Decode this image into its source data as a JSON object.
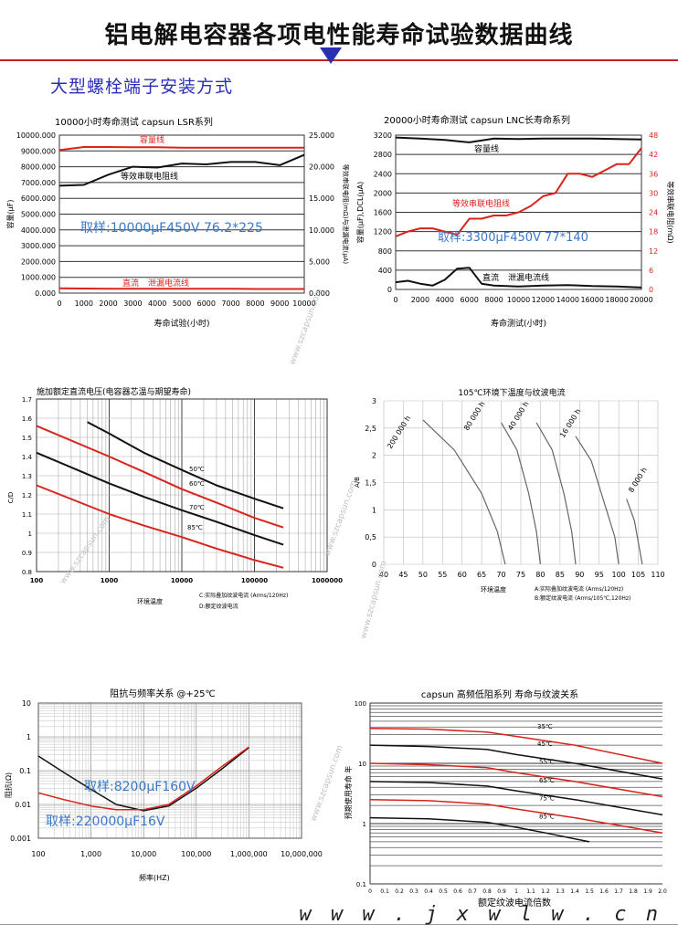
{
  "page": {
    "title": "铝电解电容器各项电性能寿命试验数据曲线",
    "section_label": "大型螺栓端子安装方式",
    "watermark_site": "w w w . j x w l w . c n",
    "side_watermark": "www.szcapsun.com",
    "footer_caption": "额定纹波电流倍数"
  },
  "colors": {
    "red": "#d9231c",
    "black": "#111111",
    "blue": "#3a78c8",
    "grid": "#777777",
    "gray_curve": "#666666"
  },
  "chart_data": [
    {
      "id": "lsr",
      "type": "line",
      "title": "10000小时寿命测试 capsun LSR系列",
      "xlabel": "寿命试验(小时)",
      "ylabel": "容量(μF)",
      "y2label": "等效串联电阻(mΩ)与泄漏电流(μA)",
      "xlim": [
        0,
        10000
      ],
      "ylim": [
        0,
        10000
      ],
      "y2lim": [
        0,
        25
      ],
      "x_ticks": [
        "0",
        "1000",
        "2000",
        "3000",
        "4000",
        "5000",
        "6000",
        "7000",
        "8000",
        "9000",
        "10000"
      ],
      "y_ticks": [
        "0.000",
        "1000.000",
        "2000.000",
        "3000.000",
        "4000.000",
        "5000.000",
        "6000.000",
        "7000.000",
        "8000.000",
        "9000.000",
        "10000.000"
      ],
      "y2_ticks": [
        "0.000",
        "5.000",
        "10.000",
        "15.000",
        "20.000",
        "25.000"
      ],
      "annotations": {
        "capacity": "容量线",
        "esr": "等效串联电阻线",
        "leakage_prefix": "直流",
        "leakage": "泄漏电流线",
        "sample": "取样:10000μF450V 76.2*225"
      },
      "series": [
        {
          "name": "容量线",
          "axis": "left",
          "x": [
            0,
            1000,
            2000,
            3000,
            4000,
            5000,
            6000,
            7000,
            8000,
            9000,
            10000
          ],
          "values": [
            9050,
            9250,
            9250,
            9230,
            9230,
            9200,
            9200,
            9210,
            9210,
            9210,
            9200
          ]
        },
        {
          "name": "等效串联电阻线",
          "axis": "left",
          "x": [
            0,
            1000,
            2000,
            3000,
            4000,
            5000,
            6000,
            7000,
            8000,
            9000,
            10000
          ],
          "values": [
            6800,
            6850,
            7500,
            8000,
            7950,
            8200,
            8150,
            8300,
            8300,
            8100,
            8750
          ]
        },
        {
          "name": "泄漏电流线",
          "axis": "left",
          "x": [
            0,
            1000,
            2000,
            3000,
            4000,
            5000,
            6000,
            7000,
            8000,
            9000,
            10000
          ],
          "values": [
            300,
            290,
            280,
            280,
            280,
            280,
            270,
            270,
            260,
            260,
            260
          ]
        }
      ]
    },
    {
      "id": "lnc",
      "type": "line",
      "title": "20000小时寿命测试 capsun LNC长寿命系列",
      "xlabel": "寿命测试(小时)",
      "ylabel": "容量(μF),DCL(μA)",
      "y2label": "等效串联电阻(mΩ)",
      "xlim": [
        0,
        20000
      ],
      "ylim": [
        0,
        3200
      ],
      "y2lim": [
        0,
        48
      ],
      "x_ticks": [
        "0",
        "2000",
        "4000",
        "6000",
        "8000",
        "10000",
        "12000",
        "14000",
        "16000",
        "18000",
        "20000"
      ],
      "y_ticks": [
        "0",
        "400",
        "800",
        "1200",
        "1600",
        "2000",
        "2400",
        "2800",
        "3200"
      ],
      "y2_ticks": [
        "0",
        "6",
        "12",
        "18",
        "24",
        "30",
        "36",
        "42",
        "48"
      ],
      "annotations": {
        "capacity": "容量线",
        "esr": "等效串联电阻线",
        "leakage_prefix": "直流",
        "leakage": "泄漏电流线",
        "sample": "取样:3300μF450V 77*140"
      },
      "series": [
        {
          "name": "容量线",
          "axis": "left",
          "x": [
            0,
            2000,
            4000,
            6000,
            8000,
            10000,
            12000,
            14000,
            16000,
            18000,
            20000
          ],
          "values": [
            3150,
            3130,
            3100,
            3050,
            3130,
            3120,
            3130,
            3130,
            3130,
            3120,
            3110
          ]
        },
        {
          "name": "等效串联电阻线",
          "axis": "right",
          "x": [
            0,
            1000,
            2000,
            3000,
            4000,
            5000,
            6000,
            7000,
            8000,
            9000,
            10000,
            11000,
            12000,
            13000,
            14000,
            15000,
            16000,
            17000,
            18000,
            19000,
            20000
          ],
          "values": [
            16.5,
            18,
            19,
            19,
            18,
            17,
            22,
            22,
            23,
            23,
            24,
            26,
            29,
            30,
            36,
            36,
            35,
            37,
            39,
            39,
            44
          ]
        },
        {
          "name": "泄漏电流线",
          "axis": "left",
          "x": [
            0,
            1000,
            2000,
            3000,
            4000,
            5000,
            6000,
            7000,
            8000,
            10000,
            12000,
            14000,
            16000,
            18000,
            20000
          ],
          "values": [
            150,
            180,
            120,
            80,
            200,
            430,
            450,
            120,
            80,
            60,
            80,
            90,
            70,
            60,
            40
          ]
        }
      ]
    },
    {
      "id": "voltage_factor",
      "type": "line",
      "title": "施加额定直流电压(电容器芯温与期望寿命)",
      "xlabel": "环境温度",
      "ylabel": "C/D",
      "x_scale": "log",
      "xlim": [
        100,
        1000000
      ],
      "ylim": [
        0.8,
        1.7
      ],
      "x_ticks": [
        "100",
        "1000",
        "10000",
        "100000",
        "1000000"
      ],
      "y_ticks": [
        "0.8",
        "0.9",
        "1",
        "1.1",
        "1.2",
        "1.3",
        "1.4",
        "1.5",
        "1.6",
        "1.7"
      ],
      "notes": [
        "C:实际叠加纹波电流 (Arms/120Hz)",
        "D:额定纹波电流"
      ],
      "series": [
        {
          "name": "50℃",
          "color": "black",
          "x": [
            500,
            1000,
            3000,
            10000,
            30000,
            100000,
            250000
          ],
          "values": [
            1.58,
            1.52,
            1.42,
            1.33,
            1.25,
            1.18,
            1.13
          ]
        },
        {
          "name": "60℃",
          "color": "red",
          "x": [
            100,
            1000,
            3000,
            10000,
            30000,
            100000,
            250000
          ],
          "values": [
            1.56,
            1.4,
            1.32,
            1.23,
            1.16,
            1.08,
            1.03
          ]
        },
        {
          "name": "70℃",
          "color": "black",
          "x": [
            100,
            1000,
            3000,
            10000,
            30000,
            100000,
            250000
          ],
          "values": [
            1.42,
            1.26,
            1.19,
            1.12,
            1.06,
            0.99,
            0.94
          ]
        },
        {
          "name": "85℃",
          "color": "red",
          "x": [
            100,
            1000,
            3000,
            10000,
            30000,
            100000,
            250000
          ],
          "values": [
            1.25,
            1.1,
            1.04,
            0.98,
            0.92,
            0.86,
            0.82
          ]
        }
      ]
    },
    {
      "id": "ripple_105",
      "type": "line",
      "title": "105℃环境下温度与纹波电流",
      "xlabel": "环境温度",
      "ylabel": "A/B",
      "xlim": [
        40,
        110
      ],
      "ylim": [
        0,
        3
      ],
      "x_ticks": [
        "40",
        "45",
        "50",
        "55",
        "60",
        "65",
        "70",
        "75",
        "80",
        "85",
        "90",
        "95",
        "100",
        "105",
        "110"
      ],
      "y_ticks": [
        "0",
        "0,5",
        "1",
        "1,5",
        "2",
        "2,5",
        "3"
      ],
      "notes": [
        "A:实际叠加纹波电流 (Arms/120Hz)",
        "B:额定纹波电流 (Arms/105℃,120Hz)"
      ],
      "series": [
        {
          "name": "200 000 h",
          "x": [
            50,
            58,
            65,
            69,
            71
          ],
          "values": [
            2.65,
            2.1,
            1.3,
            0.6,
            0
          ]
        },
        {
          "name": "80 000 h",
          "x": [
            70,
            74,
            77,
            79,
            80
          ],
          "values": [
            2.6,
            2.1,
            1.3,
            0.6,
            0
          ]
        },
        {
          "name": "40 000 h",
          "x": [
            79,
            83,
            86,
            88,
            89
          ],
          "values": [
            2.6,
            2.1,
            1.3,
            0.6,
            0
          ]
        },
        {
          "name": "16 000 h",
          "x": [
            89,
            93,
            96,
            99,
            100
          ],
          "values": [
            2.35,
            1.9,
            1.2,
            0.5,
            0
          ]
        },
        {
          "name": "8 000 h",
          "x": [
            102,
            104,
            105,
            106
          ],
          "values": [
            1.2,
            0.8,
            0.4,
            0
          ]
        }
      ]
    },
    {
      "id": "impedance",
      "type": "line",
      "title": "阻抗与频率关系 @+25℃",
      "xlabel": "频率(HZ)",
      "ylabel": "阻抗(Ω)",
      "x_scale": "log",
      "y_scale": "log",
      "xlim": [
        100,
        10000000
      ],
      "ylim": [
        0.001,
        10
      ],
      "x_ticks": [
        "100",
        "1,000",
        "10,000",
        "100,000",
        "1,000,000",
        "10,000,000"
      ],
      "y_ticks": [
        "0.001",
        "0.01",
        "0.1",
        "1",
        "10"
      ],
      "annotations": {
        "sample_a": "取样:8200μF160V",
        "sample_b": "取样:220000μF16V"
      },
      "series": [
        {
          "name": "取样:8200μF160V",
          "color": "black",
          "x": [
            100,
            300,
            1000,
            3000,
            10000,
            30000,
            100000,
            300000,
            1000000
          ],
          "values": [
            0.27,
            0.09,
            0.028,
            0.01,
            0.0065,
            0.009,
            0.03,
            0.11,
            0.48
          ]
        },
        {
          "name": "取样:220000μF16V",
          "color": "red",
          "x": [
            100,
            300,
            1000,
            3000,
            10000,
            30000,
            100000,
            300000,
            1000000
          ],
          "values": [
            0.022,
            0.014,
            0.009,
            0.007,
            0.007,
            0.01,
            0.035,
            0.13,
            0.5
          ]
        }
      ]
    },
    {
      "id": "ripple_life",
      "type": "line",
      "title": "capsun 高频低阻系列 寿命与纹波关系",
      "xlabel": "额定纹波电流倍数",
      "ylabel": "预期使用寿命 年",
      "y_scale": "log",
      "xlim": [
        0,
        2.0
      ],
      "ylim": [
        0.1,
        100
      ],
      "x_ticks": [
        "0",
        "0.1",
        "0.2",
        "0.3",
        "0.4",
        "0.5",
        "0.6",
        "0.7",
        "0.8",
        "0.9",
        "1",
        "1.1",
        "1.2",
        "1.3",
        "1.4",
        "1.5",
        "1.6",
        "1.7",
        "1.8",
        "1.9",
        "2.0"
      ],
      "y_ticks": [
        "0.1",
        "1",
        "10",
        "100"
      ],
      "series": [
        {
          "name": "35℃",
          "color": "red",
          "x": [
            0,
            0.4,
            0.8,
            1.0,
            1.4,
            2.0
          ],
          "values": [
            38,
            37,
            33,
            28,
            20,
            10
          ]
        },
        {
          "name": "45℃",
          "color": "black",
          "x": [
            0,
            0.4,
            0.8,
            1.0,
            1.4,
            2.0
          ],
          "values": [
            20,
            19,
            17,
            14,
            10,
            5.5
          ]
        },
        {
          "name": "55℃",
          "color": "red",
          "x": [
            0,
            0.4,
            0.8,
            1.0,
            1.4,
            2.0
          ],
          "values": [
            10,
            9.5,
            8.5,
            7,
            5,
            2.8
          ]
        },
        {
          "name": "65℃",
          "color": "black",
          "x": [
            0,
            0.4,
            0.8,
            1.0,
            1.4,
            2.0
          ],
          "values": [
            5,
            4.8,
            4.2,
            3.5,
            2.5,
            1.4
          ]
        },
        {
          "name": "75℃",
          "color": "red",
          "x": [
            0,
            0.4,
            0.8,
            1.0,
            1.4,
            2.0
          ],
          "values": [
            2.5,
            2.4,
            2.1,
            1.75,
            1.25,
            0.7
          ]
        },
        {
          "name": "85℃",
          "color": "black",
          "x": [
            0,
            0.4,
            0.8,
            1.0,
            1.2,
            1.5
          ],
          "values": [
            1.25,
            1.2,
            1.05,
            0.87,
            0.7,
            0.5
          ]
        }
      ]
    }
  ]
}
